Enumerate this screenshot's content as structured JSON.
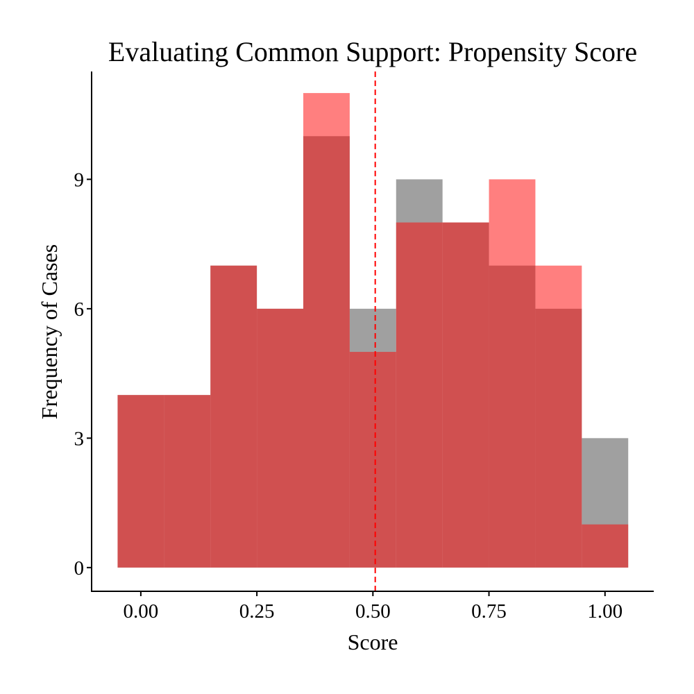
{
  "chart_data": {
    "type": "bar",
    "title": "Evaluating Common Support: Propensity Score",
    "xlabel": "Score",
    "ylabel": "Frequency of Cases",
    "bin_width": 0.1,
    "bin_centers": [
      0.0,
      0.1,
      0.2,
      0.3,
      0.4,
      0.5,
      0.6,
      0.7,
      0.8,
      0.9,
      1.0
    ],
    "series": [
      {
        "color": "#a0a0a0",
        "opacity": 1.0,
        "values": [
          4,
          4,
          7,
          6,
          10,
          6,
          9,
          8,
          7,
          6,
          3
        ]
      },
      {
        "color": "#ff0000",
        "opacity": 0.5,
        "values": [
          4,
          4,
          7,
          6,
          11,
          5,
          8,
          8,
          9,
          7,
          1
        ]
      }
    ],
    "xlim": [
      -0.106,
      1.105
    ],
    "ylim": [
      -0.55,
      11.5
    ],
    "xticks": [
      0.0,
      0.25,
      0.5,
      0.75,
      1.0
    ],
    "xtick_labels": [
      "0.00",
      "0.25",
      "0.50",
      "0.75",
      "1.00"
    ],
    "yticks": [
      0,
      3,
      6,
      9
    ],
    "ytick_labels": [
      "0",
      "3",
      "6",
      "9"
    ],
    "vline": {
      "x": 0.505,
      "color": "#ff0000",
      "style": "dashed"
    },
    "grid": false,
    "legend": "none"
  }
}
